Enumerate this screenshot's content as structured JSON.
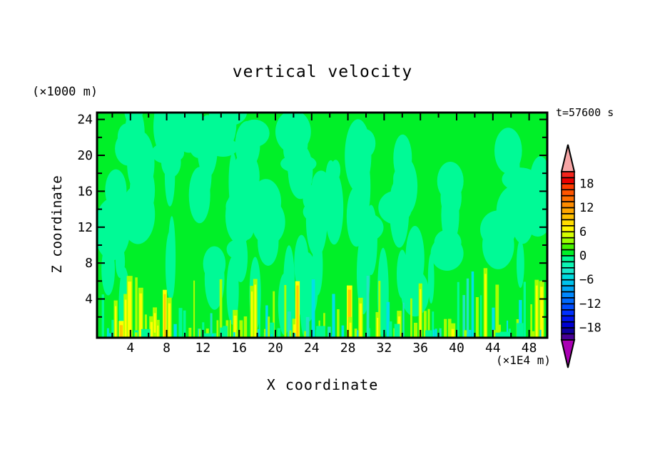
{
  "title": "vertical velocity",
  "time_label": "t=57600 s",
  "y_axis": {
    "title": "Z coordinate",
    "unit": "(×1000 m)",
    "tick_labels": [
      "24",
      "20",
      "16",
      "12",
      "8",
      "4"
    ],
    "tick_values": [
      24,
      20,
      16,
      12,
      8,
      4
    ],
    "minor_tick_values": [
      2,
      6,
      10,
      14,
      18,
      22
    ]
  },
  "x_axis": {
    "title": "X coordinate",
    "unit": "(×1E4 m)",
    "tick_labels": [
      "4",
      "8",
      "12",
      "16",
      "20",
      "24",
      "28",
      "32",
      "36",
      "40",
      "44",
      "48"
    ],
    "tick_values": [
      4,
      8,
      12,
      16,
      20,
      24,
      28,
      32,
      36,
      40,
      44,
      48
    ],
    "minor_tick_values": [
      2,
      6,
      10,
      14,
      18,
      22,
      26,
      30,
      34,
      38,
      42,
      46,
      50
    ]
  },
  "colorbar": {
    "labels": [
      "18",
      "12",
      "6",
      "0",
      "−6",
      "−12",
      "−18"
    ],
    "label_values": [
      18,
      12,
      6,
      0,
      -6,
      -12,
      -18
    ],
    "band_colors_top_to_bottom": [
      "#f5241c",
      "#ea0000",
      "#ff3c00",
      "#ff5500",
      "#ff6f00",
      "#ff8c00",
      "#ffa600",
      "#ffc000",
      "#ffdc00",
      "#fff600",
      "#d6ff00",
      "#9aff00",
      "#44f400",
      "#00f028",
      "#00fa96",
      "#0cf6b4",
      "#18e8cc",
      "#00dce0",
      "#00c2ec",
      "#00a6f6",
      "#0088ff",
      "#006aff",
      "#004cff",
      "#0030ff",
      "#0014f0",
      "#0000d2",
      "#1000a0",
      "#480096"
    ],
    "over_arrow_color": "#f7a6a6",
    "under_arrow_color": "#aa00b4",
    "outline_color": "#000000"
  },
  "chart_data": {
    "type": "heatmap",
    "subtype": "filled-contour",
    "title": "vertical velocity",
    "xlabel": "X coordinate (×1E4 m)",
    "ylabel": "Z coordinate (×1000 m)",
    "x_range": [
      0,
      50
    ],
    "z_range": [
      0,
      25
    ],
    "time_annotation": "t=57600 s",
    "colorbar_tick_values": [
      18,
      12,
      6,
      0,
      -6,
      -12,
      -18
    ],
    "contour_interval": 1.5,
    "level_range": [
      -21,
      21
    ],
    "legend_position": "right-vertical-colorbar-with-over-under-arrows",
    "grid": false,
    "field_summary": "Filled contours of vertical velocity: weak updrafts (bright green, 0 to 1.5) fill most of the domain, interleaved with weak downdraft plumes (spring green, -1.5 to 0) aloft; below z≈5 (×1000 m) a dense row of narrow convective streaks alternates stronger updraft filaments (yellow-green/yellow/gold, ≈3 to 9) with downdraft filaments (cyan/turquoise, ≈ -3 to -7)."
  },
  "field_render": {
    "seed": 12,
    "background_color": "#00f028",
    "downdraft_color": "#00fa96",
    "streak_weak_color": "#a8ff00",
    "streak_strong_color": "#ffff00",
    "streak_intense_color": "#ffc800",
    "streak_down_color": "#00e0e8",
    "streak_down2_color": "#20e4c4",
    "plume_count": 32,
    "column_count": 18,
    "streak_count": 92,
    "stub_count": 14,
    "dot_count": 26
  }
}
